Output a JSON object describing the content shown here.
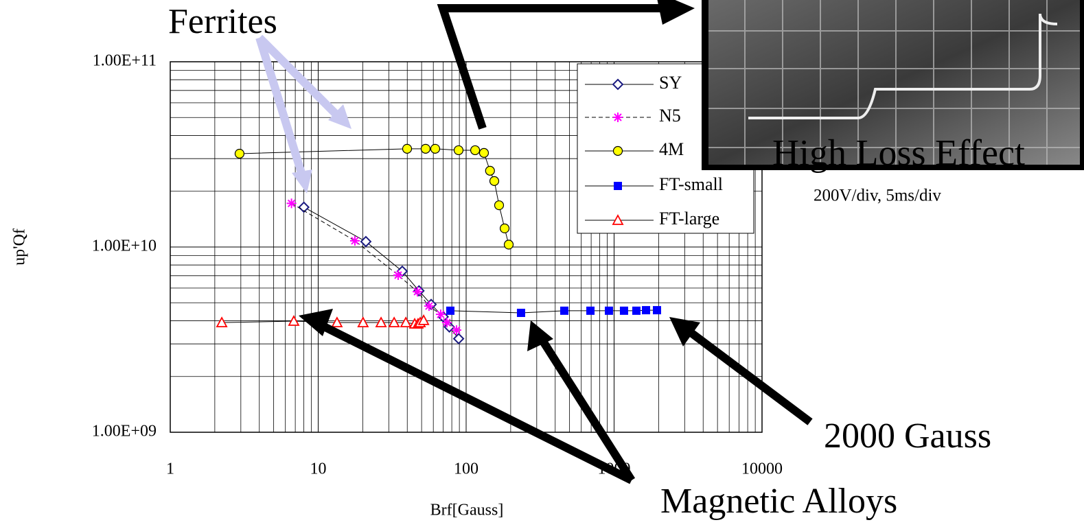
{
  "chart_data": {
    "type": "line",
    "x_label": "Brf[Gauss]",
    "y_label": "up'Qf",
    "log_x": true,
    "log_y": true,
    "grid": true,
    "legend": "upper right",
    "xlim": [
      1,
      10000
    ],
    "ylim": [
      1000000000.0,
      100000000000.0
    ],
    "xticks": [
      1,
      10,
      100,
      1000,
      10000
    ],
    "yticks": [
      {
        "value": 1000000000.0,
        "label": "1.00E+09"
      },
      {
        "value": 10000000000.0,
        "label": "1.00E+10"
      },
      {
        "value": 100000000000.0,
        "label": "1.00E+11"
      }
    ],
    "series": [
      {
        "name": "SY",
        "color": "#1a1a80",
        "marker": "diamond",
        "dash": false,
        "x": [
          8,
          21,
          37,
          48,
          58,
          70,
          77,
          89
        ],
        "values": [
          16400000000.0,
          10700000000.0,
          7400000000.0,
          5800000000.0,
          4900000000.0,
          4200000000.0,
          3700000000.0,
          3200000000.0
        ]
      },
      {
        "name": "N5",
        "color": "#ff00ff",
        "marker": "asterisk",
        "dash": true,
        "x": [
          6.6,
          17.7,
          34.7,
          46.9,
          56.1,
          67.3,
          74.1,
          86.1
        ],
        "values": [
          17200000000.0,
          10800000000.0,
          7050000000.0,
          5740000000.0,
          4800000000.0,
          4330000000.0,
          3910000000.0,
          3560000000.0
        ]
      },
      {
        "name": "4M",
        "color": "#ffff00",
        "marker": "circle",
        "dash": false,
        "x": [
          2.94,
          39.9,
          53.2,
          61.8,
          88.9,
          115,
          132,
          145,
          155,
          167,
          182,
          194
        ],
        "values": [
          31900000000.0,
          33900000000.0,
          33900000000.0,
          33900000000.0,
          33300000000.0,
          33300000000.0,
          32200000000.0,
          25800000000.0,
          22700000000.0,
          16800000000.0,
          12600000000.0,
          10300000000.0
        ]
      },
      {
        "name": "FT-small",
        "color": "#0000ff",
        "marker": "square",
        "dash": false,
        "x": [
          78.2,
          235,
          461,
          692,
          923,
          1167,
          1415,
          1644,
          1950
        ],
        "values": [
          4530000000.0,
          4410000000.0,
          4530000000.0,
          4530000000.0,
          4530000000.0,
          4530000000.0,
          4530000000.0,
          4560000000.0,
          4560000000.0
        ]
      },
      {
        "name": "FT-large",
        "color": "#ff0000",
        "marker": "triangle",
        "dash": false,
        "x": [
          2.23,
          6.84,
          13.4,
          20.1,
          26.6,
          32.6,
          39.1,
          44.9,
          47.3,
          48.9,
          51.6
        ],
        "values": [
          3910000000.0,
          3980000000.0,
          3910000000.0,
          3910000000.0,
          3910000000.0,
          3910000000.0,
          3910000000.0,
          3850000000.0,
          3850000000.0,
          3910000000.0,
          4020000000.0
        ]
      }
    ],
    "annotations": [
      "Ferrites",
      "High Loss Effect",
      "200V/div, 5ms/div",
      "2000 Gauss",
      "Magnetic Alloys"
    ]
  }
}
